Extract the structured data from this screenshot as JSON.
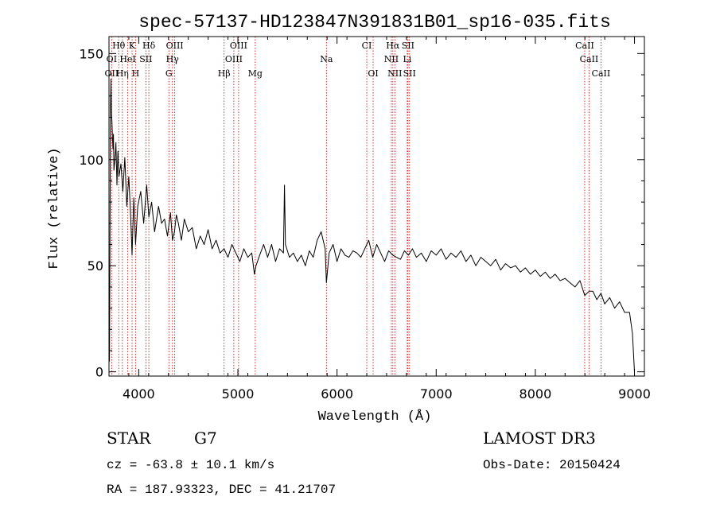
{
  "colors": {
    "background": "#ffffff",
    "ink": "#000000",
    "line_marker": "#cc0000"
  },
  "chart_data": {
    "type": "line",
    "title": "spec-57137-HD123847N391831B01_sp16-035.fits",
    "xlabel": "Wavelength (Å)",
    "ylabel": "Flux (relative)",
    "xlim": [
      3700,
      9100
    ],
    "ylim": [
      -2,
      158
    ],
    "xticks": [
      4000,
      5000,
      6000,
      7000,
      8000,
      9000
    ],
    "yticks": [
      0,
      50,
      100,
      150
    ],
    "series": [
      {
        "name": "flux",
        "x": [
          3700,
          3705,
          3710,
          3715,
          3720,
          3725,
          3730,
          3735,
          3740,
          3745,
          3750,
          3760,
          3770,
          3780,
          3790,
          3800,
          3820,
          3840,
          3860,
          3880,
          3900,
          3920,
          3933,
          3950,
          3968,
          3990,
          4020,
          4050,
          4080,
          4102,
          4130,
          4160,
          4200,
          4230,
          4260,
          4290,
          4320,
          4340,
          4360,
          4380,
          4400,
          4430,
          4460,
          4500,
          4540,
          4580,
          4620,
          4660,
          4700,
          4740,
          4780,
          4820,
          4861,
          4900,
          4940,
          4980,
          5020,
          5060,
          5100,
          5140,
          5167,
          5183,
          5220,
          5260,
          5300,
          5340,
          5380,
          5420,
          5460,
          5470,
          5480,
          5520,
          5560,
          5600,
          5640,
          5680,
          5720,
          5760,
          5800,
          5840,
          5880,
          5893,
          5920,
          5960,
          6000,
          6040,
          6080,
          6120,
          6160,
          6200,
          6240,
          6280,
          6320,
          6360,
          6400,
          6440,
          6480,
          6520,
          6563,
          6600,
          6640,
          6680,
          6720,
          6760,
          6800,
          6850,
          6900,
          6950,
          7000,
          7050,
          7100,
          7150,
          7200,
          7250,
          7300,
          7350,
          7400,
          7450,
          7500,
          7550,
          7600,
          7650,
          7700,
          7750,
          7800,
          7850,
          7900,
          7950,
          8000,
          8050,
          8100,
          8150,
          8200,
          8250,
          8300,
          8350,
          8400,
          8450,
          8498,
          8542,
          8580,
          8620,
          8662,
          8700,
          8750,
          8800,
          8850,
          8900,
          8950,
          8980,
          9000
        ],
        "values": [
          20,
          5,
          60,
          125,
          138,
          122,
          118,
          110,
          105,
          112,
          95,
          100,
          108,
          88,
          104,
          92,
          98,
          85,
          101,
          78,
          92,
          72,
          55,
          82,
          60,
          78,
          85,
          70,
          88,
          73,
          80,
          66,
          78,
          70,
          72,
          64,
          75,
          62,
          66,
          74,
          70,
          62,
          72,
          66,
          68,
          58,
          64,
          60,
          67,
          58,
          62,
          56,
          58,
          54,
          60,
          56,
          52,
          58,
          54,
          56,
          46,
          50,
          55,
          60,
          54,
          60,
          52,
          58,
          56,
          88,
          60,
          54,
          56,
          52,
          55,
          50,
          57,
          54,
          62,
          66,
          58,
          42,
          56,
          60,
          52,
          58,
          55,
          54,
          57,
          56,
          54,
          58,
          62,
          54,
          60,
          56,
          52,
          57,
          55,
          54,
          53,
          57,
          55,
          58,
          54,
          56,
          52,
          57,
          55,
          58,
          53,
          56,
          54,
          57,
          52,
          55,
          50,
          54,
          52,
          50,
          53,
          48,
          51,
          49,
          50,
          47,
          49,
          46,
          48,
          45,
          47,
          44,
          46,
          43,
          44,
          42,
          40,
          43,
          36,
          38,
          38,
          34,
          37,
          32,
          35,
          30,
          33,
          28,
          28,
          18,
          0
        ]
      }
    ],
    "emission_lines": [
      {
        "name": "Hθ",
        "wl": 3798,
        "row": 0
      },
      {
        "name": "K",
        "wl": 3933,
        "row": 0
      },
      {
        "name": "Hδ",
        "wl": 4102,
        "row": 0
      },
      {
        "name": "OIII",
        "wl": 4363,
        "row": 0
      },
      {
        "name": "OIII",
        "wl": 5007,
        "row": 0
      },
      {
        "name": "CI",
        "wl": 6300,
        "row": 0
      },
      {
        "name": "Hα",
        "wl": 6563,
        "row": 0
      },
      {
        "name": "SII",
        "wl": 6716,
        "row": 0
      },
      {
        "name": "CaII",
        "wl": 8498,
        "row": 0
      },
      {
        "name": "OI",
        "wl": 3727,
        "row": 1
      },
      {
        "name": "HeI",
        "wl": 3889,
        "row": 1
      },
      {
        "name": "SII",
        "wl": 4072,
        "row": 1
      },
      {
        "name": "Hγ",
        "wl": 4340,
        "row": 1
      },
      {
        "name": "OIII",
        "wl": 4959,
        "row": 1
      },
      {
        "name": "Na",
        "wl": 5893,
        "row": 1
      },
      {
        "name": "NII",
        "wl": 6548,
        "row": 1
      },
      {
        "name": "Li",
        "wl": 6708,
        "row": 1
      },
      {
        "name": "CaII",
        "wl": 8542,
        "row": 1
      },
      {
        "name": "OII",
        "wl": 3727,
        "row": 2
      },
      {
        "name": "Hη",
        "wl": 3835,
        "row": 2
      },
      {
        "name": "H",
        "wl": 3968,
        "row": 2
      },
      {
        "name": "G",
        "wl": 4304,
        "row": 2
      },
      {
        "name": "Hβ",
        "wl": 4861,
        "row": 2
      },
      {
        "name": "Mg",
        "wl": 5175,
        "row": 2
      },
      {
        "name": "OI",
        "wl": 6364,
        "row": 2
      },
      {
        "name": "NII",
        "wl": 6583,
        "row": 2
      },
      {
        "name": "SII",
        "wl": 6731,
        "row": 2
      },
      {
        "name": "CaII",
        "wl": 8662,
        "row": 2
      }
    ]
  },
  "info": {
    "object_class": "STAR",
    "subclass": "G7",
    "survey": "LAMOST DR3",
    "redshift": "cz = -63.8 ± 10.1 km/s",
    "obs_date": "Obs-Date: 20150424",
    "coords": "RA = 187.93323, DEC =  41.21707"
  }
}
